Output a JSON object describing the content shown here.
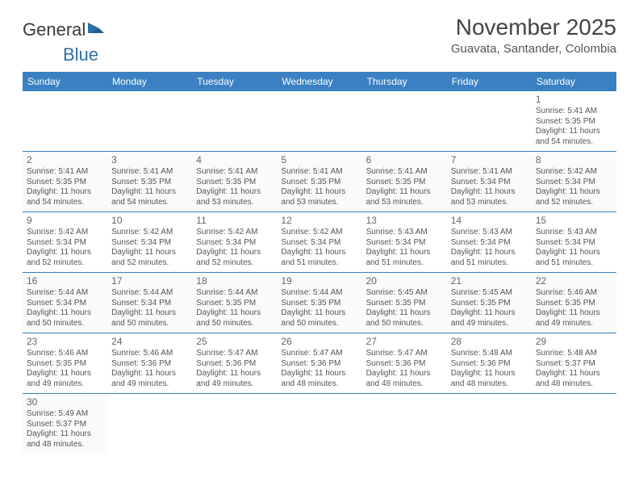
{
  "logo": {
    "text1": "General",
    "text2": "Blue"
  },
  "title": "November 2025",
  "location": "Guavata, Santander, Colombia",
  "colors": {
    "header_bg": "#3a80c2",
    "header_text": "#ffffff",
    "border": "#3a80c2",
    "text": "#555555",
    "title_text": "#444444",
    "logo_gray": "#4a4a4a",
    "logo_blue": "#2d6ea8"
  },
  "weekdays": [
    "Sunday",
    "Monday",
    "Tuesday",
    "Wednesday",
    "Thursday",
    "Friday",
    "Saturday"
  ],
  "weeks": [
    [
      null,
      null,
      null,
      null,
      null,
      null,
      {
        "n": "1",
        "sr": "5:41 AM",
        "ss": "5:35 PM",
        "dl": "11 hours and 54 minutes."
      }
    ],
    [
      {
        "n": "2",
        "sr": "5:41 AM",
        "ss": "5:35 PM",
        "dl": "11 hours and 54 minutes."
      },
      {
        "n": "3",
        "sr": "5:41 AM",
        "ss": "5:35 PM",
        "dl": "11 hours and 54 minutes."
      },
      {
        "n": "4",
        "sr": "5:41 AM",
        "ss": "5:35 PM",
        "dl": "11 hours and 53 minutes."
      },
      {
        "n": "5",
        "sr": "5:41 AM",
        "ss": "5:35 PM",
        "dl": "11 hours and 53 minutes."
      },
      {
        "n": "6",
        "sr": "5:41 AM",
        "ss": "5:35 PM",
        "dl": "11 hours and 53 minutes."
      },
      {
        "n": "7",
        "sr": "5:41 AM",
        "ss": "5:34 PM",
        "dl": "11 hours and 53 minutes."
      },
      {
        "n": "8",
        "sr": "5:42 AM",
        "ss": "5:34 PM",
        "dl": "11 hours and 52 minutes."
      }
    ],
    [
      {
        "n": "9",
        "sr": "5:42 AM",
        "ss": "5:34 PM",
        "dl": "11 hours and 52 minutes."
      },
      {
        "n": "10",
        "sr": "5:42 AM",
        "ss": "5:34 PM",
        "dl": "11 hours and 52 minutes."
      },
      {
        "n": "11",
        "sr": "5:42 AM",
        "ss": "5:34 PM",
        "dl": "11 hours and 52 minutes."
      },
      {
        "n": "12",
        "sr": "5:42 AM",
        "ss": "5:34 PM",
        "dl": "11 hours and 51 minutes."
      },
      {
        "n": "13",
        "sr": "5:43 AM",
        "ss": "5:34 PM",
        "dl": "11 hours and 51 minutes."
      },
      {
        "n": "14",
        "sr": "5:43 AM",
        "ss": "5:34 PM",
        "dl": "11 hours and 51 minutes."
      },
      {
        "n": "15",
        "sr": "5:43 AM",
        "ss": "5:34 PM",
        "dl": "11 hours and 51 minutes."
      }
    ],
    [
      {
        "n": "16",
        "sr": "5:44 AM",
        "ss": "5:34 PM",
        "dl": "11 hours and 50 minutes."
      },
      {
        "n": "17",
        "sr": "5:44 AM",
        "ss": "5:34 PM",
        "dl": "11 hours and 50 minutes."
      },
      {
        "n": "18",
        "sr": "5:44 AM",
        "ss": "5:35 PM",
        "dl": "11 hours and 50 minutes."
      },
      {
        "n": "19",
        "sr": "5:44 AM",
        "ss": "5:35 PM",
        "dl": "11 hours and 50 minutes."
      },
      {
        "n": "20",
        "sr": "5:45 AM",
        "ss": "5:35 PM",
        "dl": "11 hours and 50 minutes."
      },
      {
        "n": "21",
        "sr": "5:45 AM",
        "ss": "5:35 PM",
        "dl": "11 hours and 49 minutes."
      },
      {
        "n": "22",
        "sr": "5:46 AM",
        "ss": "5:35 PM",
        "dl": "11 hours and 49 minutes."
      }
    ],
    [
      {
        "n": "23",
        "sr": "5:46 AM",
        "ss": "5:35 PM",
        "dl": "11 hours and 49 minutes."
      },
      {
        "n": "24",
        "sr": "5:46 AM",
        "ss": "5:36 PM",
        "dl": "11 hours and 49 minutes."
      },
      {
        "n": "25",
        "sr": "5:47 AM",
        "ss": "5:36 PM",
        "dl": "11 hours and 49 minutes."
      },
      {
        "n": "26",
        "sr": "5:47 AM",
        "ss": "5:36 PM",
        "dl": "11 hours and 48 minutes."
      },
      {
        "n": "27",
        "sr": "5:47 AM",
        "ss": "5:36 PM",
        "dl": "11 hours and 48 minutes."
      },
      {
        "n": "28",
        "sr": "5:48 AM",
        "ss": "5:36 PM",
        "dl": "11 hours and 48 minutes."
      },
      {
        "n": "29",
        "sr": "5:48 AM",
        "ss": "5:37 PM",
        "dl": "11 hours and 48 minutes."
      }
    ],
    [
      {
        "n": "30",
        "sr": "5:49 AM",
        "ss": "5:37 PM",
        "dl": "11 hours and 48 minutes."
      },
      null,
      null,
      null,
      null,
      null,
      null
    ]
  ],
  "labels": {
    "sunrise": "Sunrise:",
    "sunset": "Sunset:",
    "daylight": "Daylight:"
  }
}
